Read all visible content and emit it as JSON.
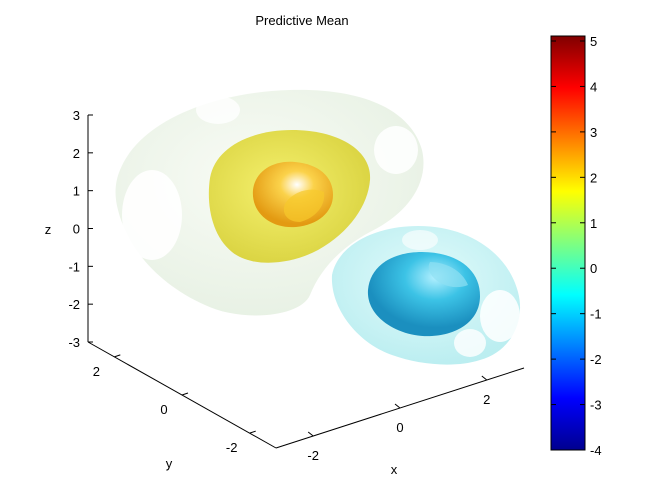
{
  "chart_data": {
    "type": "isosurface",
    "title": "Predictive Mean",
    "xlabel": "x",
    "ylabel": "y",
    "zlabel": "z",
    "xlim": [
      -3,
      3
    ],
    "ylim": [
      -3,
      3
    ],
    "zlim": [
      -3,
      3
    ],
    "x_ticks": [
      "-2",
      "0",
      "2"
    ],
    "y_ticks": [
      "2",
      "0",
      "-2"
    ],
    "z_ticks": [
      "3",
      "2",
      "1",
      "0",
      "-1",
      "-2",
      "-3"
    ],
    "colormap": "jet",
    "colorbar": {
      "min": -4,
      "max": 5,
      "ticks": [
        "5",
        "4",
        "3",
        "2",
        "1",
        "0",
        "-1",
        "-2",
        "-3",
        "-4"
      ]
    },
    "surfaces": [
      {
        "level": 0.2,
        "color": "#eef7ea",
        "opacity": 0.75
      },
      {
        "level": 1.5,
        "color": "#e6e34a",
        "opacity": 0.85
      },
      {
        "level": 2.2,
        "color": "#f2b41c",
        "opacity": 0.9
      },
      {
        "level": -0.3,
        "color": "#bff3f3",
        "opacity": 0.75
      },
      {
        "level": -1.2,
        "color": "#2fb8de",
        "opacity": 0.9
      }
    ]
  }
}
